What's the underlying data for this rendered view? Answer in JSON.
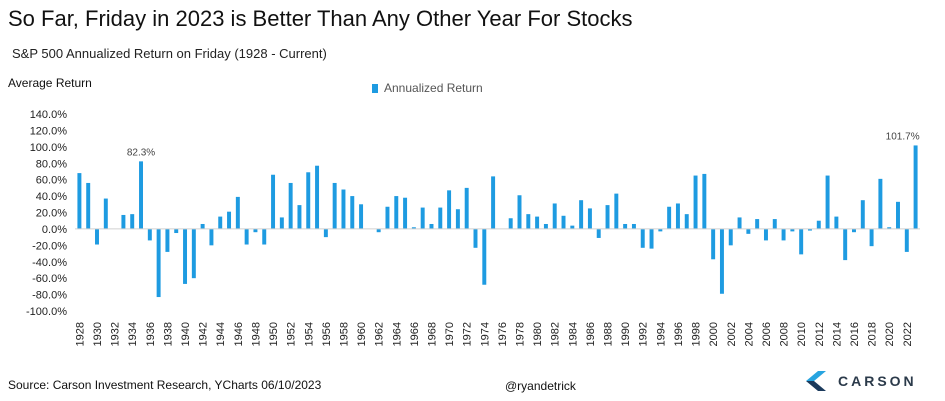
{
  "header": {
    "title": "So Far, Friday in 2023 is Better Than Any Other Year For Stocks",
    "subtitle": "S&P 500 Annualized Return on Friday (1928 - Current)",
    "y_axis_title": "Average Return"
  },
  "legend": {
    "label": "Annualized Return",
    "color": "#1e9be1"
  },
  "footer": {
    "source": "Source: Carson Investment Research, YCharts 06/10/2023",
    "handle": "@ryandetrick",
    "brand": "CARSON"
  },
  "chart_data": {
    "type": "bar",
    "title": "S&P 500 Annualized Return on Friday (1928 - Current)",
    "ylabel": "Average Return",
    "xlabel": "",
    "ylim": [
      -100,
      140
    ],
    "y_ticks": [
      "140.0%",
      "120.0%",
      "100.0%",
      "80.0%",
      "60.0%",
      "40.0%",
      "20.0%",
      "0.0%",
      "-20.0%",
      "-40.0%",
      "-60.0%",
      "-80.0%",
      "-100.0%"
    ],
    "y_tick_values": [
      140,
      120,
      100,
      80,
      60,
      40,
      20,
      0,
      -20,
      -40,
      -60,
      -80,
      -100
    ],
    "tick_label_every": 2,
    "categories": [
      "1928",
      "1929",
      "1930",
      "1931",
      "1932",
      "1933",
      "1934",
      "1935",
      "1936",
      "1937",
      "1938",
      "1939",
      "1940",
      "1941",
      "1942",
      "1943",
      "1944",
      "1945",
      "1946",
      "1947",
      "1948",
      "1949",
      "1950",
      "1951",
      "1952",
      "1953",
      "1954",
      "1955",
      "1956",
      "1957",
      "1958",
      "1959",
      "1960",
      "1961",
      "1962",
      "1963",
      "1964",
      "1965",
      "1966",
      "1967",
      "1968",
      "1969",
      "1970",
      "1971",
      "1972",
      "1973",
      "1974",
      "1975",
      "1976",
      "1977",
      "1978",
      "1979",
      "1980",
      "1981",
      "1982",
      "1983",
      "1984",
      "1985",
      "1986",
      "1987",
      "1988",
      "1989",
      "1990",
      "1991",
      "1992",
      "1993",
      "1994",
      "1995",
      "1996",
      "1997",
      "1998",
      "1999",
      "2000",
      "2001",
      "2002",
      "2003",
      "2004",
      "2005",
      "2006",
      "2007",
      "2008",
      "2009",
      "2010",
      "2011",
      "2012",
      "2013",
      "2014",
      "2015",
      "2016",
      "2017",
      "2018",
      "2019",
      "2020",
      "2021",
      "2022",
      "2023"
    ],
    "series": [
      {
        "name": "Annualized Return",
        "color": "#1e9be1",
        "values": [
          68,
          56,
          -19,
          37,
          0,
          17,
          18,
          82.3,
          -14,
          -83,
          -28,
          -5,
          -67,
          -60,
          6,
          -20,
          15,
          21,
          39,
          -19,
          -4,
          -19,
          66,
          14,
          56,
          29,
          69,
          77,
          -10,
          56,
          48,
          40,
          30,
          0,
          -4,
          27,
          40,
          38,
          2,
          26,
          6,
          26,
          47,
          24,
          50,
          -23,
          -68,
          64,
          0,
          13,
          41,
          18,
          15,
          6,
          31,
          16,
          4,
          35,
          25,
          -11,
          29,
          43,
          6,
          6,
          -23,
          -24,
          -3,
          27,
          31,
          18,
          65,
          67,
          -37,
          -79,
          -20,
          14,
          -6,
          12,
          -14,
          12,
          -14,
          -3,
          -31,
          -2,
          10,
          65,
          15,
          -38,
          -4,
          35,
          -21,
          61,
          2,
          33,
          -28,
          101.7
        ]
      }
    ],
    "data_labels": [
      {
        "category": "1935",
        "text": "82.3%"
      },
      {
        "category": "2023",
        "text": "101.7%"
      }
    ]
  }
}
